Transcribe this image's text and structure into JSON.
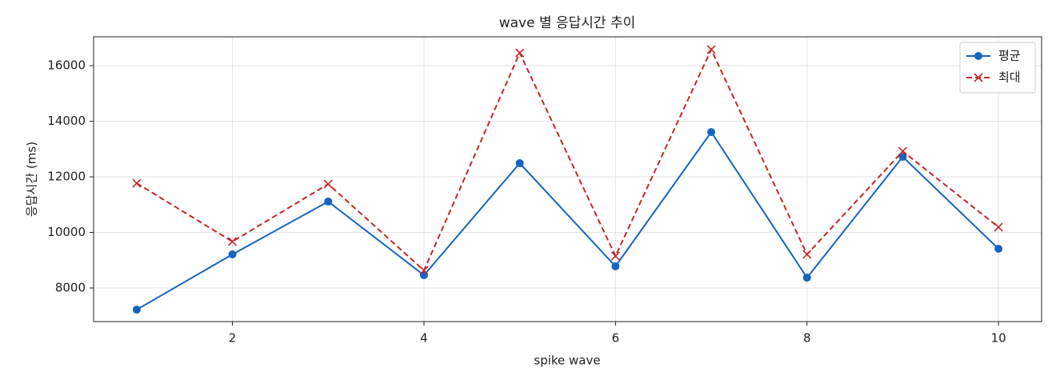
{
  "chart_data": {
    "type": "line",
    "title": "wave 별 응답시간 추이",
    "xlabel": "spike wave",
    "ylabel": "응답시간 (ms)",
    "x": [
      1,
      2,
      3,
      4,
      5,
      6,
      7,
      8,
      9,
      10
    ],
    "series": [
      {
        "name": "평균",
        "color": "#1565c0",
        "marker": "circle",
        "dash": false,
        "values": [
          7220,
          9210,
          11110,
          8460,
          12490,
          8780,
          13610,
          8370,
          12720,
          9410
        ]
      },
      {
        "name": "최대",
        "color": "#c62828",
        "marker": "x",
        "dash": true,
        "values": [
          11770,
          9670,
          11740,
          8630,
          16460,
          9150,
          16580,
          9210,
          12920,
          10190
        ]
      }
    ],
    "xlim": [
      0.55,
      10.45
    ],
    "xticks": [
      2,
      4,
      6,
      8,
      10
    ],
    "ylim": [
      6790,
      17040
    ],
    "yticks": [
      8000,
      10000,
      12000,
      14000,
      16000
    ],
    "grid": true,
    "legend": "upper right"
  }
}
